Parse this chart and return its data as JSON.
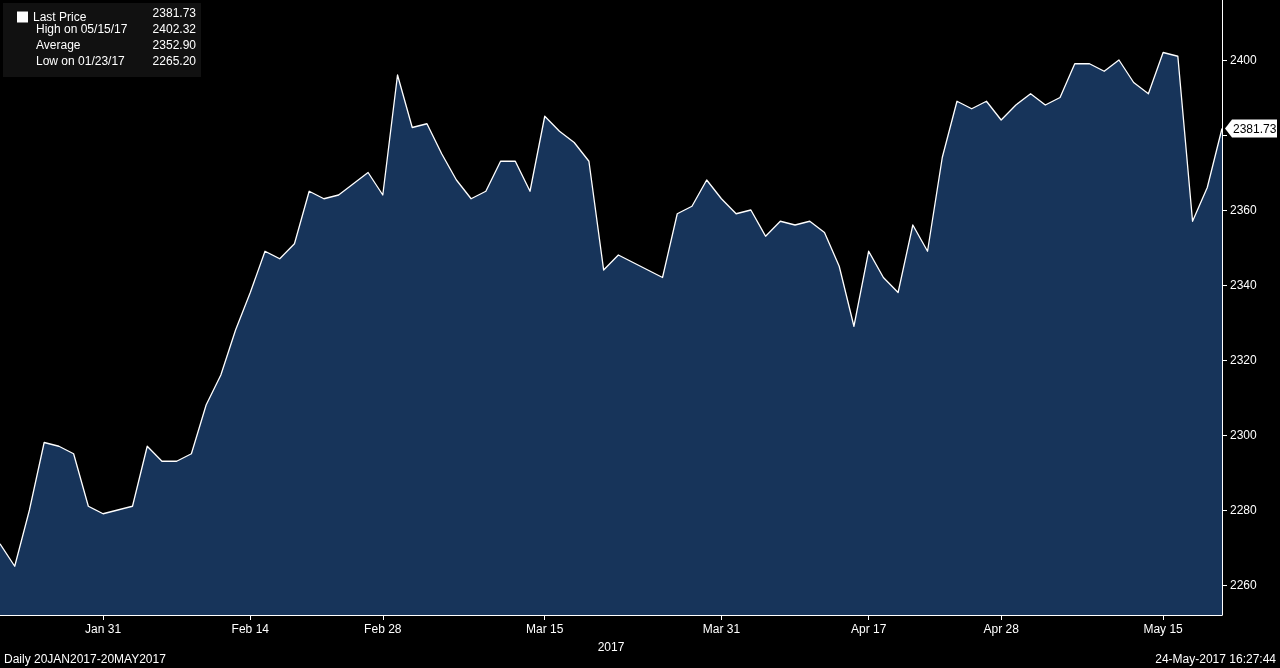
{
  "chart_data": {
    "type": "area",
    "xlabel": "2017",
    "categories": [
      null,
      null,
      null,
      null,
      null,
      null,
      null,
      "Jan 31",
      null,
      null,
      null,
      null,
      null,
      null,
      null,
      null,
      null,
      "Feb 14",
      null,
      null,
      null,
      null,
      null,
      null,
      null,
      null,
      "Feb 28",
      null,
      null,
      null,
      null,
      null,
      null,
      null,
      null,
      null,
      null,
      "Mar 15",
      null,
      null,
      null,
      null,
      null,
      null,
      null,
      null,
      null,
      null,
      null,
      "Mar 31",
      null,
      null,
      null,
      null,
      null,
      null,
      null,
      null,
      null,
      "Apr 17",
      null,
      null,
      null,
      null,
      null,
      null,
      null,
      null,
      "Apr 28",
      null,
      null,
      null,
      null,
      null,
      null,
      null,
      null,
      null,
      null,
      "May 15",
      null,
      null,
      null,
      null
    ],
    "series": [
      {
        "name": "Last Price",
        "color": "#17345a",
        "values": [
          2271,
          2265,
          2280,
          2298,
          2297,
          2295,
          2281,
          2279,
          2280,
          2281,
          2297,
          2293,
          2293,
          2295,
          2308,
          2316,
          2328,
          2338,
          2349,
          2347,
          2351,
          2365,
          2363,
          2364,
          2367,
          2370,
          2364,
          2396,
          2382,
          2383,
          2375,
          2368,
          2363,
          2365,
          2373,
          2373,
          2365,
          2385,
          2381,
          2378,
          2373,
          2344,
          2348,
          2346,
          2344,
          2342,
          2359,
          2361,
          2368,
          2363,
          2359,
          2360,
          2353,
          2357,
          2356,
          2357,
          2354,
          2345,
          2329,
          2349,
          2342,
          2338,
          2356,
          2349,
          2374,
          2389,
          2387,
          2389,
          2384,
          2388,
          2391,
          2388,
          2390,
          2399,
          2399,
          2397,
          2400,
          2394,
          2391,
          2402,
          2401,
          2357,
          2366,
          2381.73
        ]
      }
    ],
    "ylim": [
      2252,
      2416
    ],
    "yticks": [
      2260,
      2280,
      2300,
      2320,
      2340,
      2360,
      {
        "value": 2380,
        "label": null
      },
      2400
    ],
    "legend": "top left",
    "grid": false,
    "annotations": [
      "2381.73",
      "High on 05/15/17",
      "2402.32",
      "Average",
      "2352.90",
      "Low on 01/23/17",
      "2265.20",
      "2381.73",
      "Daily 20JAN2017-20MAY2017",
      "24-May-2017 16:27:44"
    ]
  }
}
